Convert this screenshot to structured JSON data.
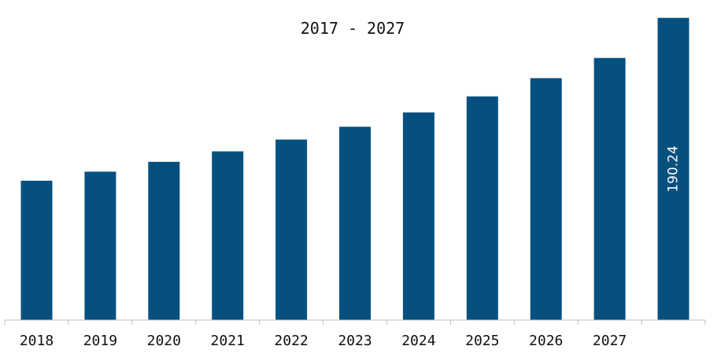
{
  "chart_data": {
    "type": "bar",
    "title": "2017 - 2027",
    "xlabel": "",
    "ylabel": "",
    "categories": [
      "2018",
      "2019",
      "2020",
      "2021",
      "2022",
      "2023",
      "2024",
      "2025",
      "2026",
      "2027",
      ""
    ],
    "values": [
      87.7,
      93.4,
      99.6,
      106.2,
      113.6,
      121.7,
      130.7,
      140.8,
      152.3,
      165.0,
      190.24
    ],
    "data_labels": [
      "",
      "",
      "",
      "",
      "",
      "",
      "",
      "",
      "",
      "",
      "190.24"
    ],
    "ylim": [
      0,
      200
    ],
    "grid": false,
    "legend": "none",
    "bar_color": "#06507f"
  }
}
